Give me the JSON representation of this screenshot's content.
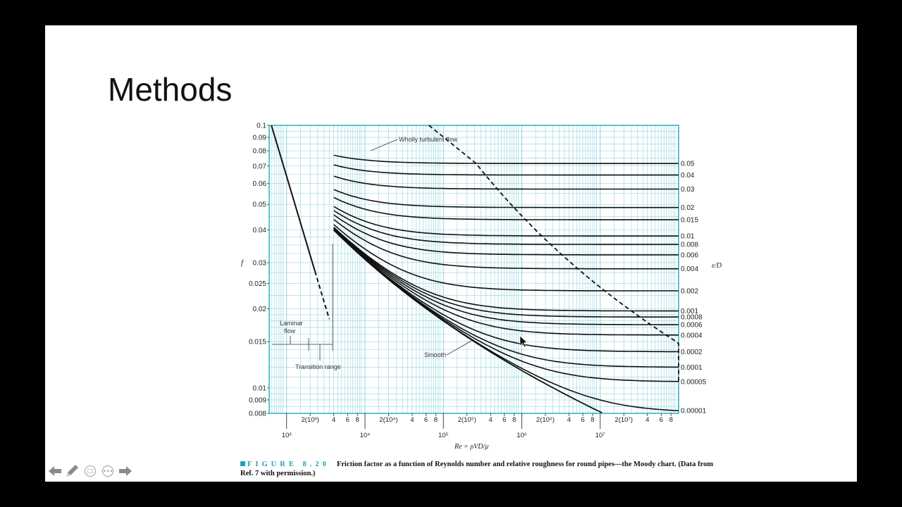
{
  "slide": {
    "title": "Methods"
  },
  "chart_data": {
    "type": "line",
    "title": "",
    "xlabel_symbol": "Re = ρVD/μ",
    "ylabel": "f",
    "right_label": "ε/D",
    "x_scale": "log",
    "y_scale": "log",
    "xlim": [
      600,
      100000000
    ],
    "ylim": [
      0.008,
      0.1
    ],
    "y_ticks": [
      {
        "v": 0.1,
        "label": "0.1"
      },
      {
        "v": 0.09,
        "label": "0.09"
      },
      {
        "v": 0.08,
        "label": "0.08"
      },
      {
        "v": 0.07,
        "label": "0.07"
      },
      {
        "v": 0.06,
        "label": "0.06"
      },
      {
        "v": 0.05,
        "label": "0.05"
      },
      {
        "v": 0.04,
        "label": "0.04"
      },
      {
        "v": 0.03,
        "label": "0.03"
      },
      {
        "v": 0.025,
        "label": "0.025"
      },
      {
        "v": 0.02,
        "label": "0.02"
      },
      {
        "v": 0.015,
        "label": "0.015"
      },
      {
        "v": 0.01,
        "label": "0.01"
      },
      {
        "v": 0.009,
        "label": "0.009"
      },
      {
        "v": 0.008,
        "label": "0.008"
      }
    ],
    "x_minor_labels": [
      {
        "v": 2000,
        "label": "2(10³)"
      },
      {
        "v": 4000,
        "label": "4"
      },
      {
        "v": 6000,
        "label": "6"
      },
      {
        "v": 8000,
        "label": "8"
      },
      {
        "v": 20000,
        "label": "2(10⁴)"
      },
      {
        "v": 40000,
        "label": "4"
      },
      {
        "v": 60000,
        "label": "6"
      },
      {
        "v": 80000,
        "label": "8"
      },
      {
        "v": 200000,
        "label": "2(10⁵)"
      },
      {
        "v": 400000,
        "label": "4"
      },
      {
        "v": 600000,
        "label": "6"
      },
      {
        "v": 800000,
        "label": "8"
      },
      {
        "v": 2000000,
        "label": "2(10⁶)"
      },
      {
        "v": 4000000,
        "label": "4"
      },
      {
        "v": 6000000,
        "label": "6"
      },
      {
        "v": 8000000,
        "label": "8"
      },
      {
        "v": 20000000,
        "label": "2(10⁷)"
      },
      {
        "v": 40000000,
        "label": "4"
      },
      {
        "v": 60000000,
        "label": "6"
      },
      {
        "v": 80000000,
        "label": "8"
      }
    ],
    "x_major_labels": [
      {
        "v": 1000,
        "label": "10³"
      },
      {
        "v": 10000,
        "label": "10⁴"
      },
      {
        "v": 100000,
        "label": "10⁵"
      },
      {
        "v": 1000000,
        "label": "10⁶"
      },
      {
        "v": 10000000,
        "label": "10⁷"
      }
    ],
    "roughness_series": [
      {
        "name": "0.05",
        "value": 0.05
      },
      {
        "name": "0.04",
        "value": 0.04
      },
      {
        "name": "0.03",
        "value": 0.03
      },
      {
        "name": "0.02",
        "value": 0.02
      },
      {
        "name": "0.015",
        "value": 0.015
      },
      {
        "name": "0.01",
        "value": 0.01
      },
      {
        "name": "0.008",
        "value": 0.008
      },
      {
        "name": "0.006",
        "value": 0.006
      },
      {
        "name": "0.004",
        "value": 0.004
      },
      {
        "name": "0.002",
        "value": 0.002
      },
      {
        "name": "0.001",
        "value": 0.001
      },
      {
        "name": "0.0008",
        "value": 0.0008
      },
      {
        "name": "0.0006",
        "value": 0.0006
      },
      {
        "name": "0.0004",
        "value": 0.0004
      },
      {
        "name": "0.0002",
        "value": 0.0002
      },
      {
        "name": "0.0001",
        "value": 0.0001
      },
      {
        "name": "0.00005",
        "value": 5e-05
      },
      {
        "name": "0.00001",
        "value": 1e-05
      }
    ],
    "annotations": {
      "wholly_turbulent": "Wholly turbulent flow",
      "laminar_line1": "Laminar",
      "laminar_line2": "flow",
      "transition": "Transition range",
      "smooth": "Smooth"
    }
  },
  "caption": {
    "figure_tag": "FIGURE 8.20",
    "text": "Friction factor as a function of Reynolds number and relative roughness for round pipes—the Moody chart. (Data from Ref. 7 with permission.)"
  },
  "nav": {
    "prev_icon": "arrow-left-icon",
    "pen_icon": "pen-icon",
    "slides_icon": "slides-icon",
    "more_icon": "more-icon",
    "next_icon": "arrow-right-icon"
  },
  "colors": {
    "grid": "#8fd4e0",
    "frame": "#2ab2c2",
    "caption_accent": "#1fa3b5"
  }
}
